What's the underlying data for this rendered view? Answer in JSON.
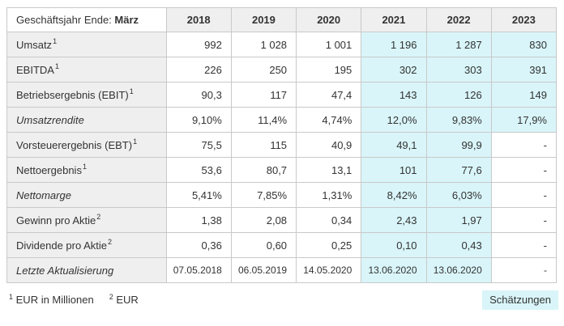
{
  "chart_data": {
    "type": "table",
    "title": "Geschäftsjahr Ende: März",
    "columns": [
      "2018",
      "2019",
      "2020",
      "2021",
      "2022",
      "2023"
    ],
    "estimate_start_col": 3,
    "estimate_columns": [
      "2021",
      "2022",
      "2023"
    ],
    "rows": [
      {
        "label": "Umsatz",
        "sup": "1",
        "italic": false,
        "values": [
          "992",
          "1 028",
          "1 001",
          "1 196",
          "1 287",
          "830"
        ]
      },
      {
        "label": "EBITDA",
        "sup": "1",
        "italic": false,
        "values": [
          "226",
          "250",
          "195",
          "302",
          "303",
          "391"
        ]
      },
      {
        "label": "Betriebsergebnis (EBIT)",
        "sup": "1",
        "italic": false,
        "values": [
          "90,3",
          "117",
          "47,4",
          "143",
          "126",
          "149"
        ]
      },
      {
        "label": "Umsatzrendite",
        "sup": "",
        "italic": true,
        "values": [
          "9,10%",
          "11,4%",
          "4,74%",
          "12,0%",
          "9,83%",
          "17,9%"
        ]
      },
      {
        "label": "Vorsteuerergebnis (EBT)",
        "sup": "1",
        "italic": false,
        "values": [
          "75,5",
          "115",
          "40,9",
          "49,1",
          "99,9",
          "-"
        ]
      },
      {
        "label": "Nettoergebnis",
        "sup": "1",
        "italic": false,
        "values": [
          "53,6",
          "80,7",
          "13,1",
          "101",
          "77,6",
          "-"
        ]
      },
      {
        "label": "Nettomarge",
        "sup": "",
        "italic": true,
        "values": [
          "5,41%",
          "7,85%",
          "1,31%",
          "8,42%",
          "6,03%",
          "-"
        ]
      },
      {
        "label": "Gewinn pro Aktie",
        "sup": "2",
        "italic": false,
        "values": [
          "1,38",
          "2,08",
          "0,34",
          "2,43",
          "1,97",
          "-"
        ]
      },
      {
        "label": "Dividende pro Aktie",
        "sup": "2",
        "italic": false,
        "values": [
          "0,36",
          "0,60",
          "0,25",
          "0,10",
          "0,43",
          "-"
        ]
      },
      {
        "label": "Letzte Aktualisierung",
        "sup": "",
        "italic": true,
        "values": [
          "07.05.2018",
          "06.05.2019",
          "14.05.2020",
          "13.06.2020",
          "13.06.2020",
          "-"
        ]
      }
    ]
  },
  "header": {
    "corner_text": "Geschäftsjahr Ende:",
    "corner_bold": "März"
  },
  "footer": {
    "footnotes": [
      {
        "sup": "1",
        "text": "EUR in Millionen"
      },
      {
        "sup": "2",
        "text": "EUR"
      }
    ],
    "estimates_label": "Schätzungen"
  },
  "colors": {
    "estimate_bg": "#d9f5f9",
    "header_bg": "#efefef",
    "border": "#c9c9c9",
    "text": "#333333",
    "muted_text": "#8d8d8d"
  }
}
